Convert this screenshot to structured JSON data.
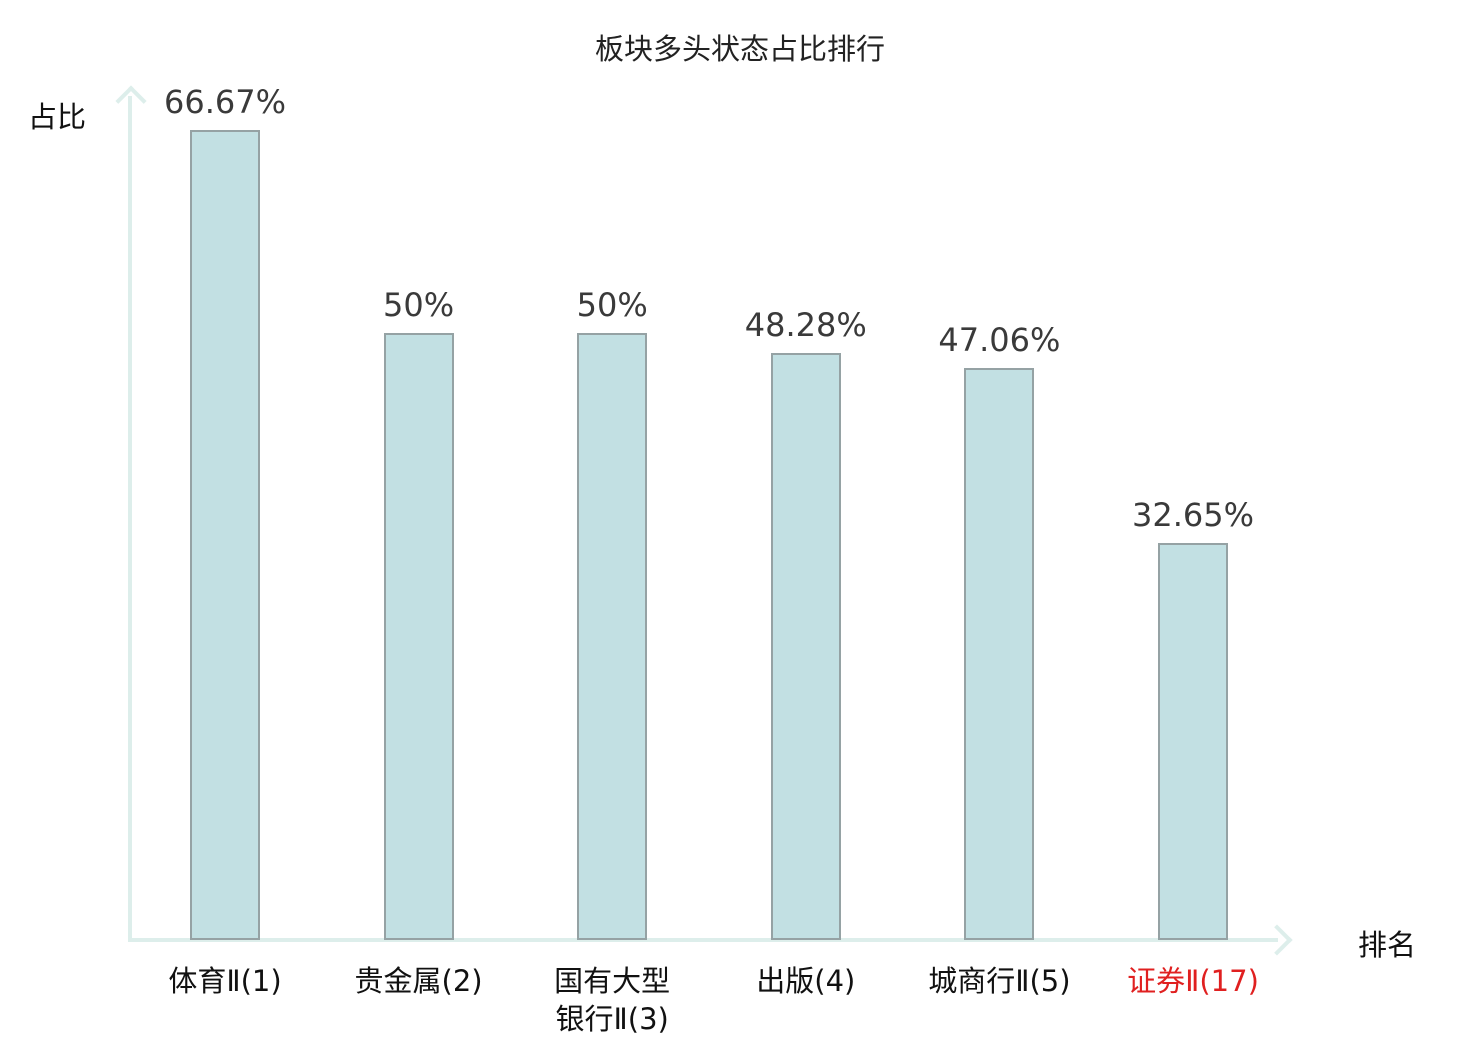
{
  "title": "板块多头状态占比排行",
  "axes": {
    "y_label": "占比",
    "x_label": "排名"
  },
  "colors": {
    "bar_fill": "#c2e0e3",
    "bar_border": "#95a2a4",
    "axis": "#ddeeeb",
    "value_text": "#3a3a3a",
    "label_text": "#111111",
    "highlight_text": "#e02020"
  },
  "chart_data": {
    "type": "bar",
    "title": "板块多头状态占比排行",
    "xlabel": "排名",
    "ylabel": "占比",
    "categories": [
      "体育Ⅱ(1)",
      "贵金属(2)",
      "国有大型银行Ⅱ(3)",
      "出版(4)",
      "城商行Ⅱ(5)",
      "证券Ⅱ(17)"
    ],
    "category_lines": [
      [
        "体育Ⅱ(1)"
      ],
      [
        "贵金属(2)"
      ],
      [
        "国有大型",
        "银行Ⅱ(3)"
      ],
      [
        "出版(4)"
      ],
      [
        "城商行Ⅱ(5)"
      ],
      [
        "证券Ⅱ(17)"
      ]
    ],
    "values": [
      66.67,
      50,
      50,
      48.28,
      47.06,
      32.65
    ],
    "value_labels": [
      "66.67%",
      "50%",
      "50%",
      "48.28%",
      "47.06%",
      "32.65%"
    ],
    "highlighted_category_index": 5,
    "ylim": [
      0,
      70
    ],
    "grid": false,
    "legend": null
  }
}
